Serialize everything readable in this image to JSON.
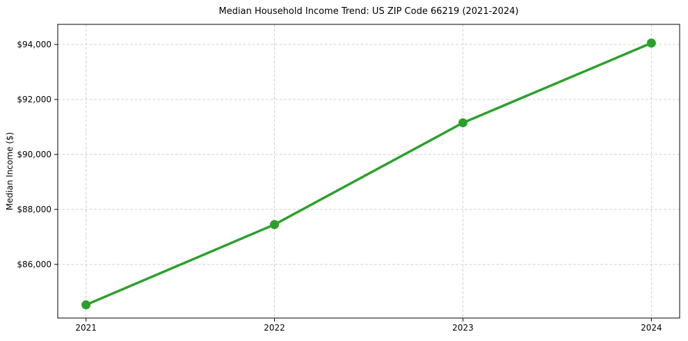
{
  "chart_data": {
    "type": "line",
    "title": "Median Household Income Trend: US ZIP Code 66219 (2021-2024)",
    "xlabel": "",
    "ylabel": "Median Income ($)",
    "categories": [
      2021,
      2022,
      2023,
      2024
    ],
    "xtick_labels": [
      "2021",
      "2022",
      "2023",
      "2024"
    ],
    "series": [
      {
        "name": "Median household income",
        "values": [
          84530,
          87450,
          91150,
          94050
        ]
      }
    ],
    "yticks": [
      86000,
      88000,
      90000,
      92000,
      94000
    ],
    "ytick_labels": [
      "$86,000",
      "$88,000",
      "$90,000",
      "$92,000",
      "$94,000"
    ],
    "xlim": [
      2020.85,
      2024.15
    ],
    "ylim": [
      84050,
      94730
    ],
    "grid": true,
    "legend": false,
    "line_color": "#2ca02c",
    "marker": "o",
    "marker_radius": 6.5,
    "grid_color": "#d0d0d0",
    "spine_color": "#000000",
    "background": "#ffffff"
  }
}
